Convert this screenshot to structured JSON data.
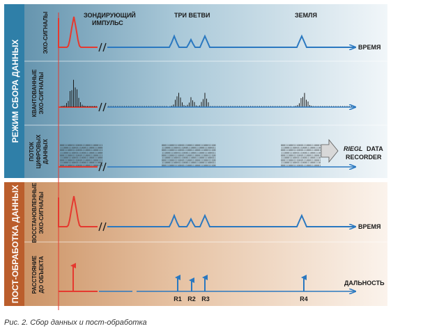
{
  "sections": {
    "acquisition": "РЕЖИМ СБОРА ДАННЫХ",
    "post": "ПОСТ-ОБРАБОТКА ДАННЫХ"
  },
  "rows": {
    "echo": "ЭХО-СИГНАЛЫ",
    "quant_1": "КВАНТОВАННЫЕ",
    "quant_2": "ЭХО-СИГНАЛЫ",
    "stream_1": "ПОТОК",
    "stream_2": "ЦИФРОВЫХ",
    "stream_3": "ДАННЫХ",
    "restored_1": "ВОССТАНОВЛЕННЫЕ",
    "restored_2": "ЭХО-СИГНАЛЫ",
    "distance_1": "РАССТОЯНИЕ",
    "distance_2": "ДО ОБЪЕКТА"
  },
  "annotations": {
    "probe_1": "ЗОНДИРУЮЩИЙ",
    "probe_2": "ИМПУЛЬС",
    "branches": "ТРИ ВЕТВИ",
    "ground": "ЗЕМЛЯ",
    "time_1": "ВРЕМЯ",
    "time_2": "ВРЕМЯ",
    "distance": "ДАЛЬНОСТЬ"
  },
  "recorder": {
    "brand": "RIEGL",
    "word": "DATA",
    "line2": "RECORDER"
  },
  "ranges": [
    "R1",
    "R2",
    "R3",
    "R4"
  ],
  "caption": "Рис. 2. Сбор данных и пост-обработка",
  "colors": {
    "red": "#e5392f",
    "blue": "#2a78c0",
    "black": "#1a1a1a"
  }
}
